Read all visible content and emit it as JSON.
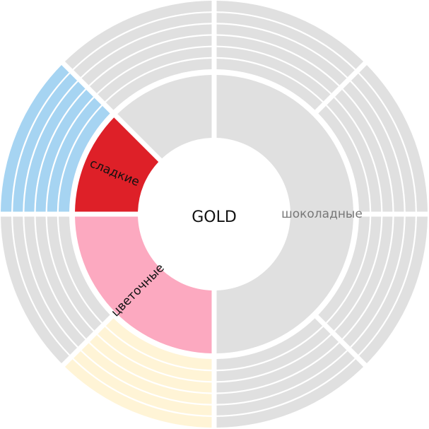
{
  "chart_data": {
    "type": "sunburst",
    "center_label": "GOLD",
    "inner": [
      {
        "label": "шоколадные",
        "value": 50,
        "color": "#e0e0e0",
        "text_color": "#777777"
      },
      {
        "label": "цветочные",
        "value": 25,
        "color": "#fca9c0",
        "text_color": "#111111"
      },
      {
        "label": "сладкие",
        "value": 12.5,
        "color": "#de2028",
        "text_color": "#111111"
      },
      {
        "label": "",
        "value": 12.5,
        "color": "#e0e0e0",
        "text_color": "#777777"
      }
    ],
    "outer": [
      {
        "value": 12.5,
        "color": "#e0e0e0"
      },
      {
        "value": 12.5,
        "color": "#e0e0e0"
      },
      {
        "value": 12.5,
        "color": "#e0e0e0"
      },
      {
        "value": 12.5,
        "color": "#e0e0e0"
      },
      {
        "value": 12.5,
        "color": "#fff4d6"
      },
      {
        "value": 12.5,
        "color": "#e0e0e0"
      },
      {
        "value": 12.5,
        "color": "#a6d4f2"
      },
      {
        "value": 12.5,
        "color": "#e0e0e0"
      }
    ]
  }
}
